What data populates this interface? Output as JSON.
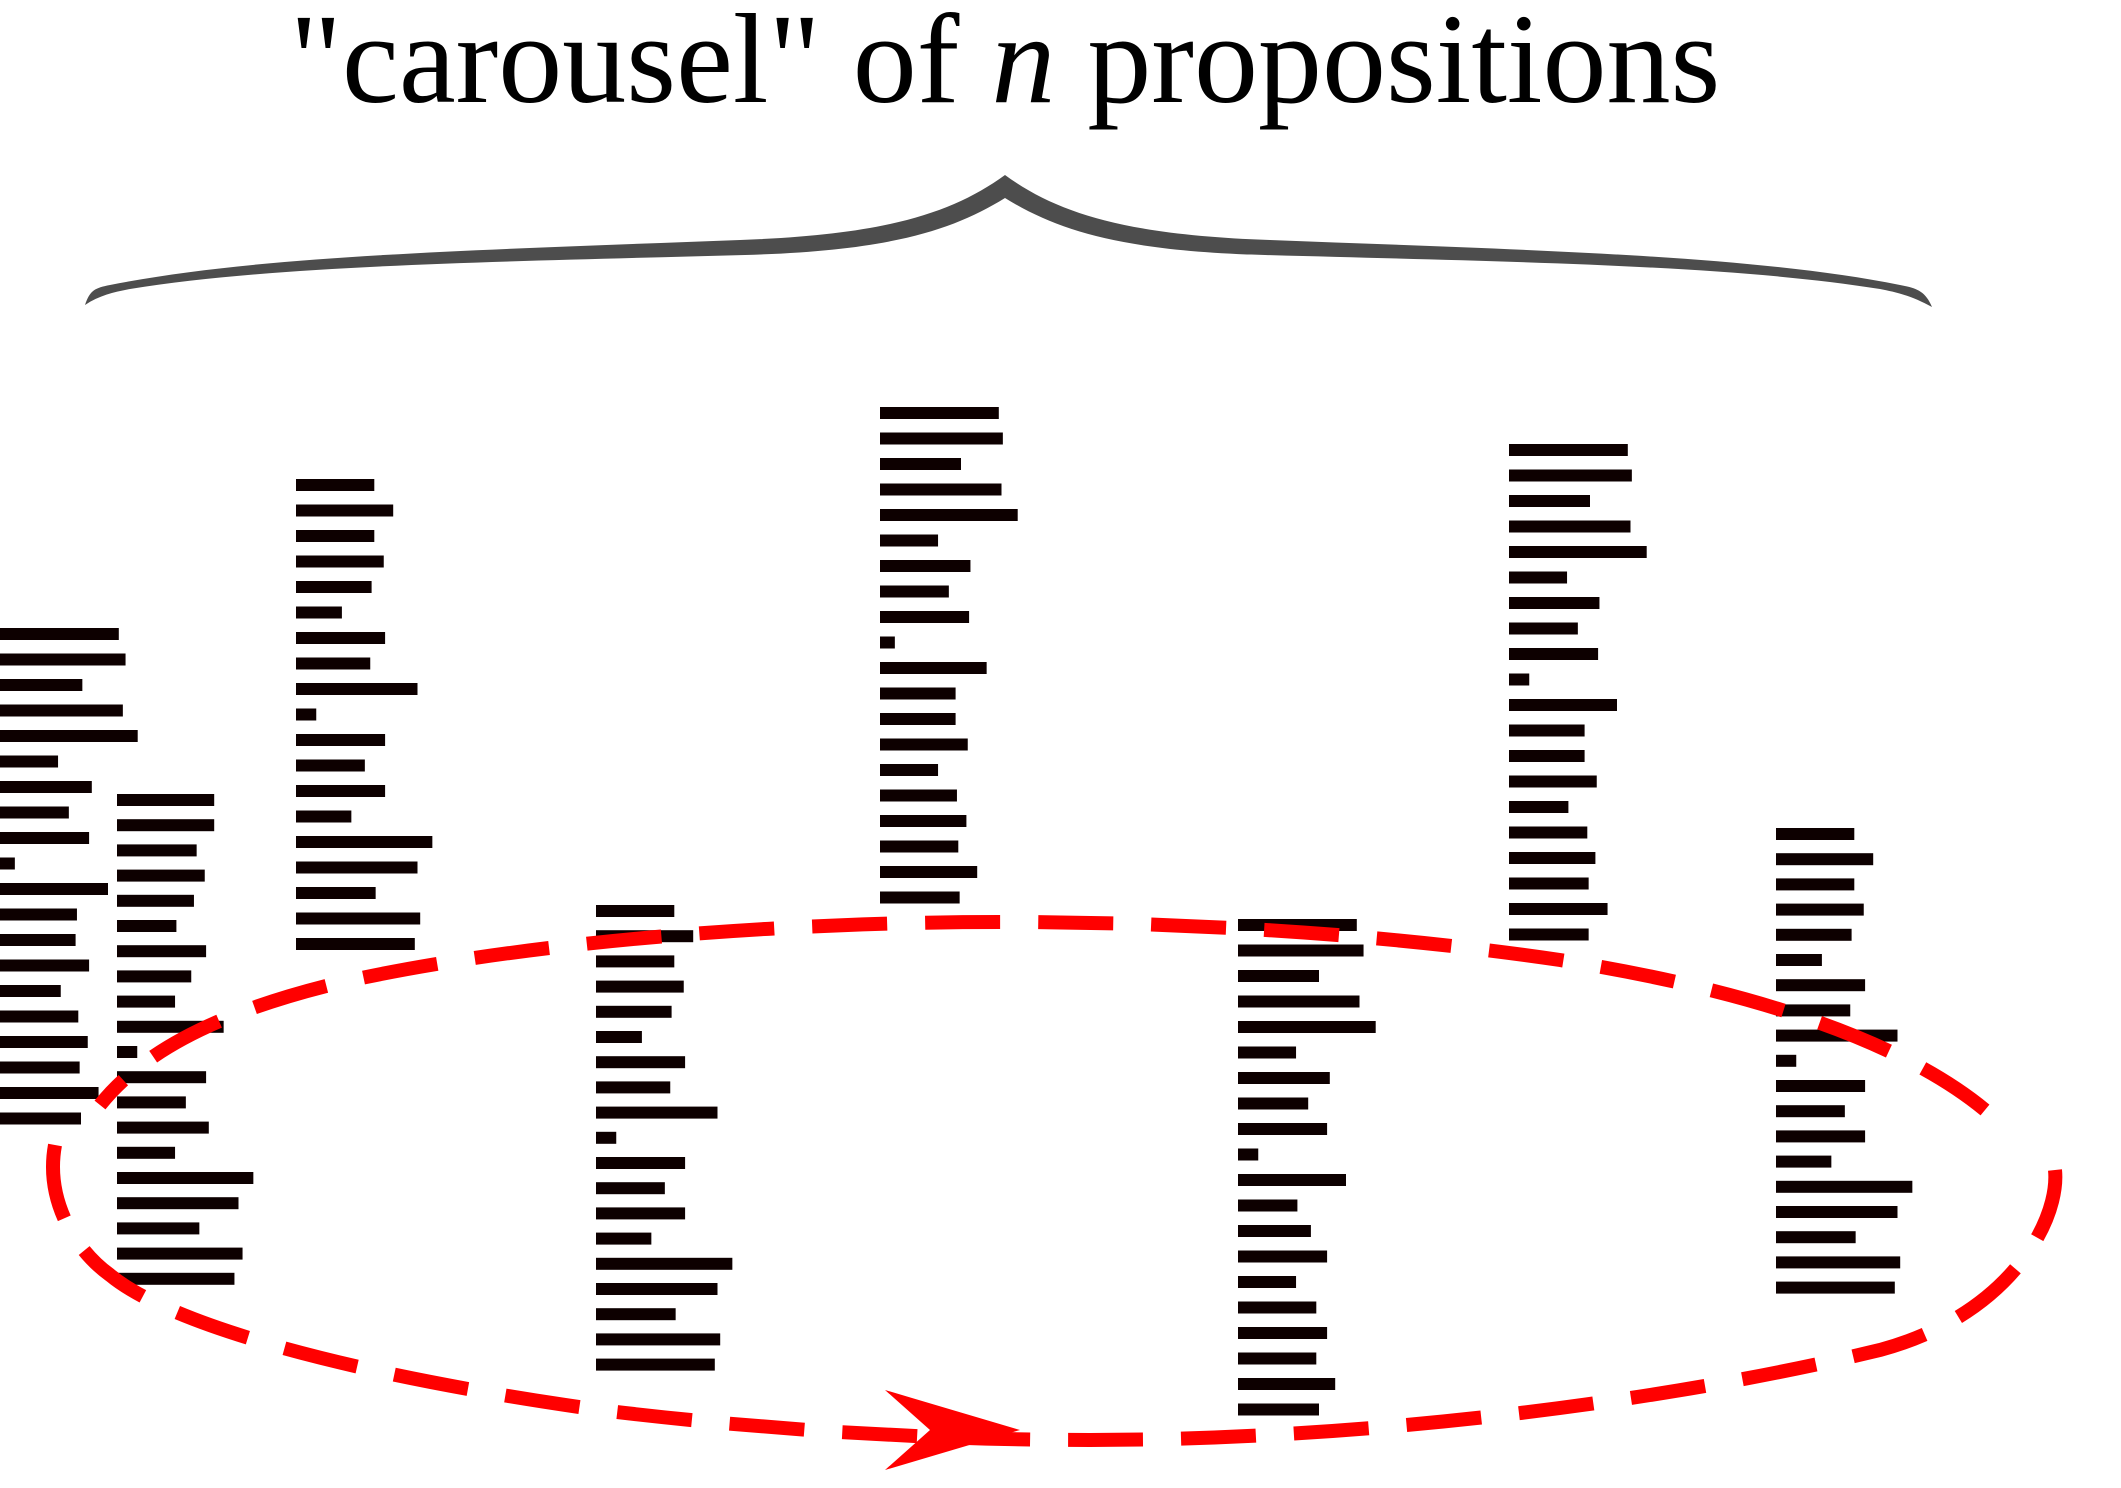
{
  "title": {
    "prefix": "\"carousel\" of ",
    "variable": "n",
    "suffix": " propositions"
  },
  "colors": {
    "text": "#000000",
    "brace": "#4d4d4d",
    "bars": "#0d0000",
    "carousel_path": "#ff0000"
  },
  "diagram": {
    "stack_count": 8,
    "bar_lengths_per_stack": [
      [
        88,
        93,
        61,
        91,
        102,
        43,
        68,
        51,
        66,
        11,
        80,
        57,
        56,
        66,
        45,
        58,
        65,
        59,
        73,
        60
      ],
      [
        72,
        72,
        59,
        65,
        57,
        44,
        66,
        55,
        43,
        79,
        15,
        66,
        51,
        68,
        43,
        101,
        90,
        61,
        93,
        87
      ],
      [
        58,
        72,
        58,
        65,
        56,
        34,
        66,
        55,
        90,
        15,
        66,
        51,
        66,
        41,
        101,
        90,
        59,
        92,
        88
      ],
      [
        88,
        91,
        60,
        90,
        102,
        43,
        67,
        51,
        66,
        11,
        79,
        56,
        56,
        65,
        43,
        57,
        64,
        58,
        72,
        59
      ],
      [
        58,
        72,
        58,
        65,
        56,
        34,
        66,
        55,
        90,
        15,
        66,
        51,
        66,
        41,
        101,
        90,
        59,
        92,
        88
      ],
      [
        88,
        91,
        60,
        90,
        102,
        43,
        67,
        51,
        66,
        15,
        80,
        56,
        56,
        65,
        44,
        58,
        64,
        59,
        73,
        59
      ],
      [
        88,
        93,
        60,
        90,
        102,
        43,
        68,
        52,
        66,
        15,
        80,
        44,
        54,
        66,
        43,
        58,
        66,
        58,
        72,
        60
      ],
      [
        58,
        72,
        58,
        65,
        56,
        34,
        66,
        55,
        90,
        15,
        66,
        51,
        66,
        41,
        101,
        90,
        59,
        92,
        88
      ]
    ]
  }
}
